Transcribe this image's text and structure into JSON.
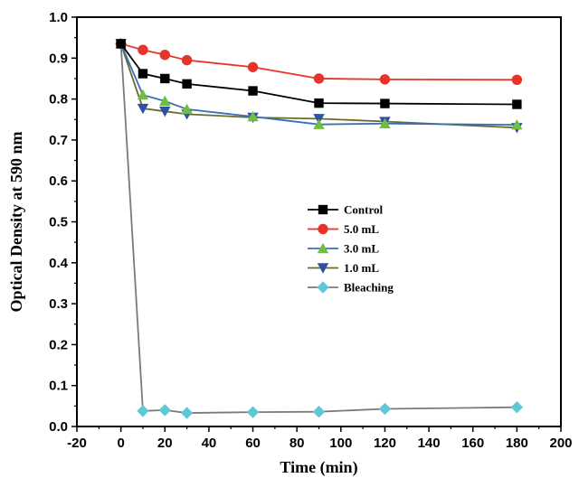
{
  "chart_data": {
    "type": "line",
    "title": "",
    "xlabel": "Time (min)",
    "ylabel": "Optical Density at 590 nm",
    "xlim": [
      -20,
      200
    ],
    "ylim": [
      0.0,
      1.0
    ],
    "xticks": [
      -20,
      0,
      20,
      40,
      60,
      80,
      100,
      120,
      140,
      160,
      180,
      200
    ],
    "yticks": [
      "0.0",
      "0.1",
      "0.2",
      "0.3",
      "0.4",
      "0.5",
      "0.6",
      "0.7",
      "0.8",
      "0.9",
      "1.0"
    ],
    "grid": false,
    "legend_position": "center-right",
    "series": [
      {
        "name": "Control",
        "color": "#000000",
        "marker": "square",
        "x": [
          0,
          10,
          20,
          30,
          60,
          90,
          120,
          180
        ],
        "y": [
          0.935,
          0.862,
          0.85,
          0.837,
          0.82,
          0.79,
          0.789,
          0.787
        ]
      },
      {
        "name": "5.0  mL",
        "color": "#e8332a",
        "marker": "circle",
        "x": [
          0,
          10,
          20,
          30,
          60,
          90,
          120,
          180
        ],
        "y": [
          0.935,
          0.92,
          0.908,
          0.895,
          0.878,
          0.85,
          0.848,
          0.847
        ]
      },
      {
        "name": "3.0  mL",
        "color": "#6fbf3c",
        "marker": "triangle-up",
        "x": [
          0,
          10,
          20,
          30,
          60,
          90,
          120,
          180
        ],
        "y": [
          0.935,
          0.81,
          0.795,
          0.775,
          0.757,
          0.738,
          0.74,
          0.737
        ]
      },
      {
        "name": "1.0  mL",
        "color": "#2e4fa5",
        "marker": "triangle-down",
        "x": [
          0,
          10,
          20,
          30,
          60,
          90,
          120,
          180
        ],
        "y": [
          0.935,
          0.777,
          0.77,
          0.763,
          0.755,
          0.752,
          0.745,
          0.73
        ]
      },
      {
        "name": "Bleaching",
        "color": "#5fc8d8",
        "marker": "diamond",
        "x": [
          0,
          10,
          20,
          30,
          60,
          90,
          120,
          180
        ],
        "y": [
          0.935,
          0.038,
          0.04,
          0.033,
          0.035,
          0.036,
          0.043,
          0.047
        ]
      }
    ]
  }
}
